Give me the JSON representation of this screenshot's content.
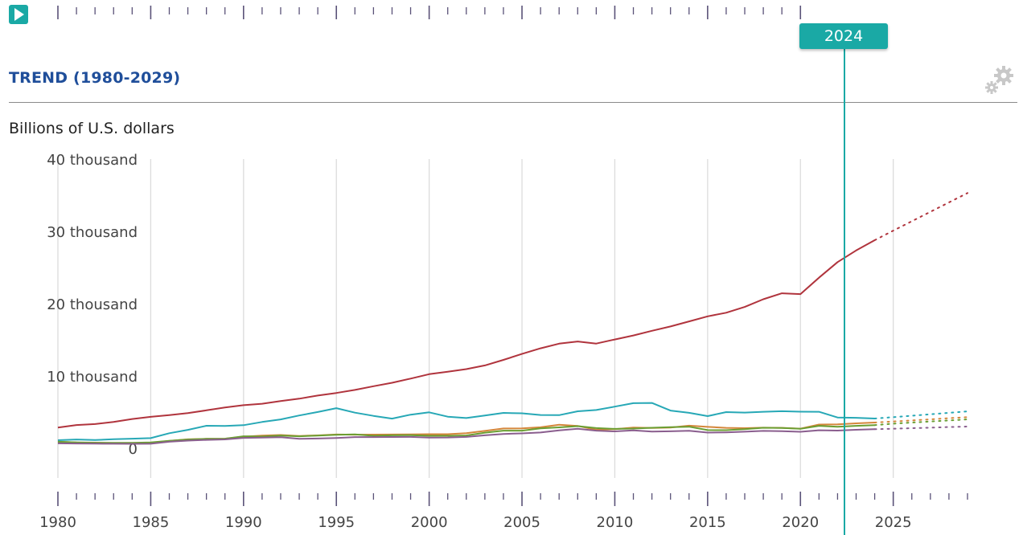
{
  "header": {
    "play_icon": "play-icon",
    "settings_icon": "gear-icon",
    "accent_color": "#1aa9a5",
    "title_color": "#1f4e9a"
  },
  "slider": {
    "selected_year": "2024"
  },
  "chart_data": {
    "type": "line",
    "title": "TREND (1980-2029)",
    "ylabel": "Billions of U.S. dollars",
    "xlabel": "",
    "xlim": [
      1980,
      2029
    ],
    "ylim": [
      -7000,
      40000
    ],
    "y_ticks": [
      {
        "value": 40000,
        "label": "40 thousand"
      },
      {
        "value": 30000,
        "label": "30 thousand"
      },
      {
        "value": 20000,
        "label": "20 thousand"
      },
      {
        "value": 10000,
        "label": "10 thousand"
      },
      {
        "value": 0,
        "label": "0"
      }
    ],
    "x_tick_labels": [
      1980,
      1985,
      1990,
      1995,
      2000,
      2005,
      2010,
      2015,
      2020,
      2025
    ],
    "grid": "vertical",
    "projection_start": 2024,
    "x": [
      1980,
      1981,
      1982,
      1983,
      1984,
      1985,
      1986,
      1987,
      1988,
      1989,
      1990,
      1991,
      1992,
      1993,
      1994,
      1995,
      1996,
      1997,
      1998,
      1999,
      2000,
      2001,
      2002,
      2003,
      2004,
      2005,
      2006,
      2007,
      2008,
      2009,
      2010,
      2011,
      2012,
      2013,
      2014,
      2015,
      2016,
      2017,
      2018,
      2019,
      2020,
      2021,
      2022,
      2023,
      2024,
      2025,
      2026,
      2027,
      2028,
      2029
    ],
    "series": [
      {
        "color": "#b0343d",
        "values": [
          2860,
          3210,
          3340,
          3640,
          4040,
          4340,
          4580,
          4860,
          5240,
          5640,
          5960,
          6160,
          6520,
          6860,
          7290,
          7640,
          8070,
          8580,
          9060,
          9630,
          10250,
          10580,
          10940,
          11460,
          12220,
          13040,
          13820,
          14470,
          14770,
          14480,
          15050,
          15600,
          16250,
          16840,
          17550,
          18240,
          18750,
          19540,
          20610,
          21430,
          21320,
          23590,
          25740,
          27360,
          28780,
          30100,
          31400,
          32700,
          34000,
          35300
        ]
      },
      {
        "color": "#27a8b6",
        "values": [
          1110,
          1210,
          1130,
          1240,
          1320,
          1400,
          2080,
          2540,
          3110,
          3090,
          3190,
          3630,
          3990,
          4530,
          5010,
          5550,
          4920,
          4480,
          4100,
          4640,
          4970,
          4370,
          4180,
          4520,
          4890,
          4830,
          4600,
          4580,
          5110,
          5290,
          5760,
          6230,
          6270,
          5210,
          4900,
          4440,
          5000,
          4930,
          5040,
          5120,
          5060,
          5040,
          4260,
          4210,
          4110,
          4300,
          4500,
          4700,
          4900,
          5100
        ]
      },
      {
        "color": "#d4863a",
        "values": [
          900,
          800,
          780,
          720,
          710,
          740,
          1010,
          1230,
          1300,
          1320,
          1600,
          1750,
          1830,
          1700,
          1780,
          1900,
          1880,
          1890,
          1900,
          1910,
          1950,
          1950,
          2080,
          2400,
          2730,
          2760,
          2900,
          3240,
          3090,
          2550,
          2640,
          2870,
          2800,
          2860,
          3120,
          2960,
          2820,
          2780,
          2840,
          2820,
          2710,
          3280,
          3300,
          3440,
          3560,
          3700,
          3850,
          4000,
          4150,
          4300
        ]
      },
      {
        "color": "#6a9e32",
        "values": [
          900,
          810,
          760,
          750,
          760,
          800,
          1020,
          1210,
          1300,
          1320,
          1650,
          1620,
          1740,
          1660,
          1740,
          1870,
          1910,
          1720,
          1790,
          1800,
          1720,
          1720,
          1770,
          2150,
          2430,
          2430,
          2740,
          2890,
          3050,
          2790,
          2680,
          2720,
          2830,
          2910,
          2980,
          2510,
          2500,
          2630,
          2830,
          2810,
          2690,
          3100,
          2980,
          3100,
          3200,
          3400,
          3550,
          3700,
          3850,
          4000
        ]
      },
      {
        "color": "#8a5e8e",
        "values": [
          680,
          650,
          630,
          620,
          610,
          620,
          900,
          1060,
          1160,
          1220,
          1430,
          1470,
          1520,
          1300,
          1340,
          1420,
          1540,
          1540,
          1560,
          1570,
          1480,
          1490,
          1570,
          1790,
          1980,
          2050,
          2180,
          2470,
          2690,
          2430,
          2330,
          2470,
          2310,
          2350,
          2410,
          2170,
          2200,
          2290,
          2400,
          2360,
          2280,
          2490,
          2450,
          2560,
          2630,
          2700,
          2780,
          2850,
          2930,
          3000
        ]
      }
    ]
  }
}
